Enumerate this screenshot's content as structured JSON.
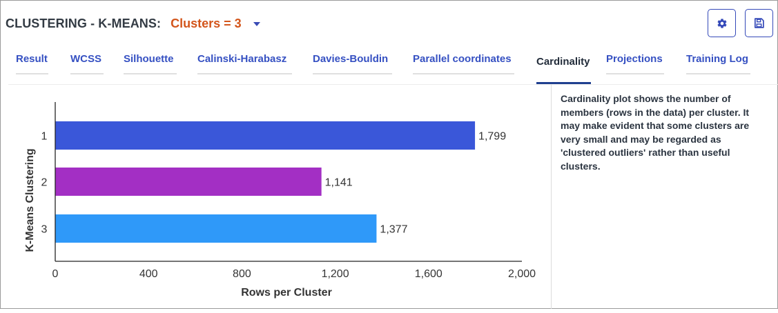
{
  "header": {
    "title": "CLUSTERING - K-MEANS:",
    "clusters_label": "Clusters = 3"
  },
  "toolbar": {
    "settings_icon": "gear-icon",
    "save_icon": "floppy-disk-icon"
  },
  "tabs": [
    {
      "label": "Result",
      "active": false
    },
    {
      "label": "WCSS",
      "active": false
    },
    {
      "label": "Silhouette",
      "active": false
    },
    {
      "label": "Calinski-Harabasz",
      "active": false
    },
    {
      "label": "Davies-Bouldin",
      "active": false
    },
    {
      "label": "Parallel coordinates",
      "active": false
    },
    {
      "label": "Cardinality",
      "active": true
    },
    {
      "label": "Projections",
      "active": false
    },
    {
      "label": "Training Log",
      "active": false
    }
  ],
  "description": "Cardinality plot shows the number of members (rows in the data) per cluster. It may make evident that some clusters are very small and may be regarded as 'clustered outliers' rather than useful clusters.",
  "colors": {
    "accent": "#3550c2",
    "clusters_label": "#d3551b"
  },
  "chart_data": {
    "type": "bar",
    "orientation": "horizontal",
    "categories": [
      "1",
      "2",
      "3"
    ],
    "values": [
      1799,
      1141,
      1377
    ],
    "value_labels": [
      "1,799",
      "1,141",
      "1,377"
    ],
    "colors": [
      "#3a57d9",
      "#a32fc4",
      "#2f99f9"
    ],
    "xlabel": "Rows per Cluster",
    "ylabel": "K-Means Clustering",
    "xlim": [
      0,
      2000
    ],
    "xticks": [
      0,
      400,
      800,
      1200,
      1600,
      2000
    ],
    "xtick_labels": [
      "0",
      "400",
      "800",
      "1,200",
      "1,600",
      "2,000"
    ],
    "grid": false
  }
}
